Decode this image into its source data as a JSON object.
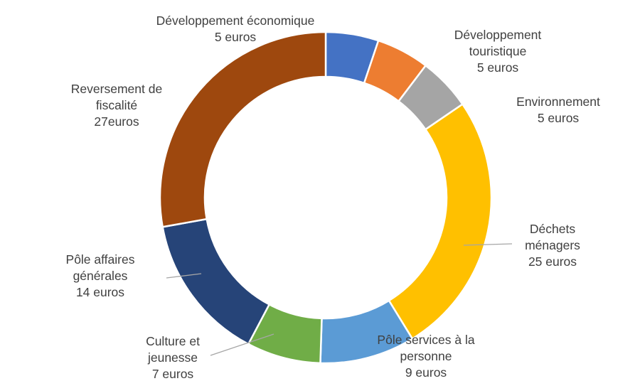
{
  "chart_data": {
    "type": "donut",
    "slices": [
      {
        "key": "dev_eco",
        "value": 5,
        "color": "#4472C4",
        "label_lines": [
          "Développement économique",
          "5 euros"
        ]
      },
      {
        "key": "dev_tour",
        "value": 5,
        "color": "#ED7D31",
        "label_lines": [
          "Développement",
          "touristique",
          "5 euros"
        ]
      },
      {
        "key": "env",
        "value": 5,
        "color": "#A5A5A5",
        "label_lines": [
          "Environnement",
          "5 euros"
        ]
      },
      {
        "key": "dechets",
        "value": 25,
        "color": "#FFC000",
        "label_lines": [
          "Déchets",
          "ménagers",
          "25 euros"
        ]
      },
      {
        "key": "pole_services",
        "value": 9,
        "color": "#5B9BD5",
        "label_lines": [
          "Pôle services à la",
          "personne",
          "9 euros"
        ]
      },
      {
        "key": "culture",
        "value": 7,
        "color": "#70AD47",
        "label_lines": [
          "Culture et",
          "jeunesse",
          "7 euros"
        ]
      },
      {
        "key": "pole_affaires",
        "value": 14,
        "color": "#264478",
        "label_lines": [
          "Pôle affaires",
          "générales",
          "14 euros"
        ]
      },
      {
        "key": "reversement",
        "value": 27,
        "color": "#9E480E",
        "label_lines": [
          "Reversement de",
          "fiscalité",
          "27euros"
        ]
      }
    ]
  }
}
